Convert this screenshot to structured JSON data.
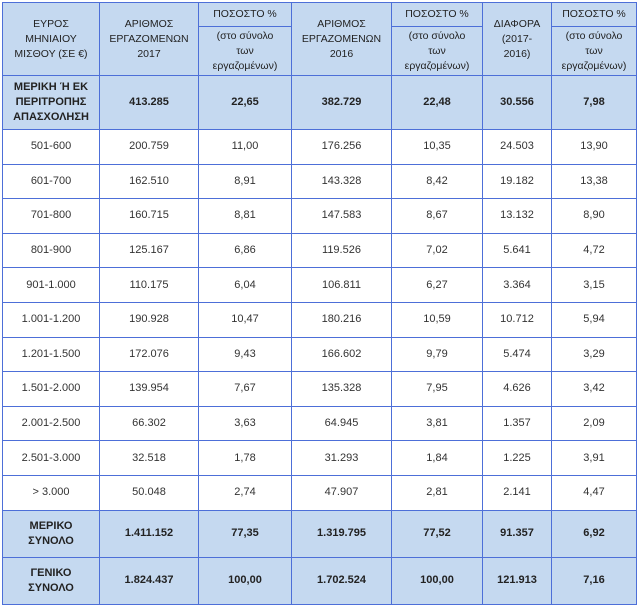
{
  "headers": {
    "range": [
      "ΕΥΡΟΣ",
      "ΜΗΝΙΑΙΟΥ",
      "ΜΙΣΘΟΥ (ΣΕ €)"
    ],
    "count2017": [
      "ΑΡΙΘΜΟΣ",
      "ΕΡΓΑΖΟΜΕΝΩΝ",
      "2017"
    ],
    "pct_title": "ΠΟΣΟΣΤΟ %",
    "pct_sub": [
      "(στο σύνολο",
      "των",
      "εργαζομένων)"
    ],
    "count2016": [
      "ΑΡΙΘΜΟΣ",
      "ΕΡΓΑΖΟΜΕΝΩΝ",
      "2016"
    ],
    "diff": [
      "ΔΙΑΦΟΡΑ",
      "(2017-",
      "2016)"
    ]
  },
  "part_time": {
    "label": [
      "ΜΕΡΙΚΗ Ή ΕΚ",
      "ΠΕΡΙΤΡΟΠΗΣ",
      "ΑΠΑΣΧΟΛΗΣΗ"
    ],
    "values": [
      "413.285",
      "22,65",
      "382.729",
      "22,48",
      "30.556",
      "7,98"
    ]
  },
  "rows": [
    [
      "501-600",
      "200.759",
      "11,00",
      "176.256",
      "10,35",
      "24.503",
      "13,90"
    ],
    [
      "601-700",
      "162.510",
      "8,91",
      "143.328",
      "8,42",
      "19.182",
      "13,38"
    ],
    [
      "701-800",
      "160.715",
      "8,81",
      "147.583",
      "8,67",
      "13.132",
      "8,90"
    ],
    [
      "801-900",
      "125.167",
      "6,86",
      "119.526",
      "7,02",
      "5.641",
      "4,72"
    ],
    [
      "901-1.000",
      "110.175",
      "6,04",
      "106.811",
      "6,27",
      "3.364",
      "3,15"
    ],
    [
      "1.001-1.200",
      "190.928",
      "10,47",
      "180.216",
      "10,59",
      "10.712",
      "5,94"
    ],
    [
      "1.201-1.500",
      "172.076",
      "9,43",
      "166.602",
      "9,79",
      "5.474",
      "3,29"
    ],
    [
      "1.501-2.000",
      "139.954",
      "7,67",
      "135.328",
      "7,95",
      "4.626",
      "3,42"
    ],
    [
      "2.001-2.500",
      "66.302",
      "3,63",
      "64.945",
      "3,81",
      "1.357",
      "2,09"
    ],
    [
      "2.501-3.000",
      "32.518",
      "1,78",
      "31.293",
      "1,84",
      "1.225",
      "3,91"
    ],
    [
      "> 3.000",
      "50.048",
      "2,74",
      "47.907",
      "2,81",
      "2.141",
      "4,47"
    ]
  ],
  "totals": [
    {
      "label": [
        "ΜΕΡΙΚΟ",
        "ΣΥΝΟΛΟ"
      ],
      "values": [
        "1.411.152",
        "77,35",
        "1.319.795",
        "77,52",
        "91.357",
        "6,92"
      ]
    },
    {
      "label": [
        "ΓΕΝΙΚΟ",
        "ΣΥΝΟΛΟ"
      ],
      "values": [
        "1.824.437",
        "100,00",
        "1.702.524",
        "100,00",
        "121.913",
        "7,16"
      ]
    }
  ],
  "colors": {
    "header_bg": "#c5d9f0",
    "border": "#4d6fd8"
  }
}
